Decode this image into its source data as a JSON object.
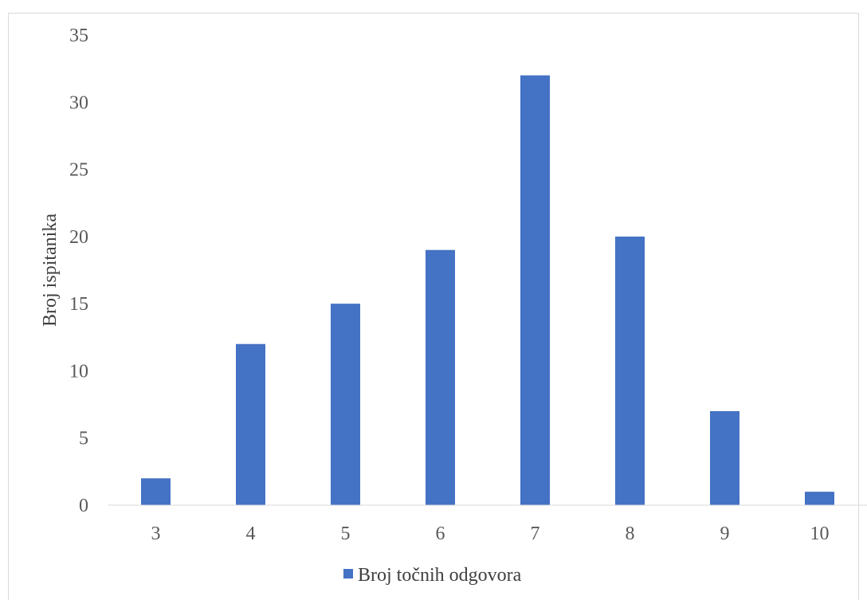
{
  "chart_data": {
    "type": "bar",
    "categories": [
      "3",
      "4",
      "5",
      "6",
      "7",
      "8",
      "9",
      "10"
    ],
    "series": [
      {
        "name": "Broj točnih odgovora",
        "values": [
          2,
          12,
          15,
          19,
          32,
          20,
          7,
          1
        ],
        "color": "#4472c4"
      }
    ],
    "ylabel": "Broj ispitanika",
    "xlabel": "",
    "ylim": [
      0,
      35
    ],
    "yticks": [
      "0",
      "5",
      "10",
      "15",
      "20",
      "25",
      "30",
      "35"
    ],
    "grid": false,
    "legend_position": "bottom"
  }
}
